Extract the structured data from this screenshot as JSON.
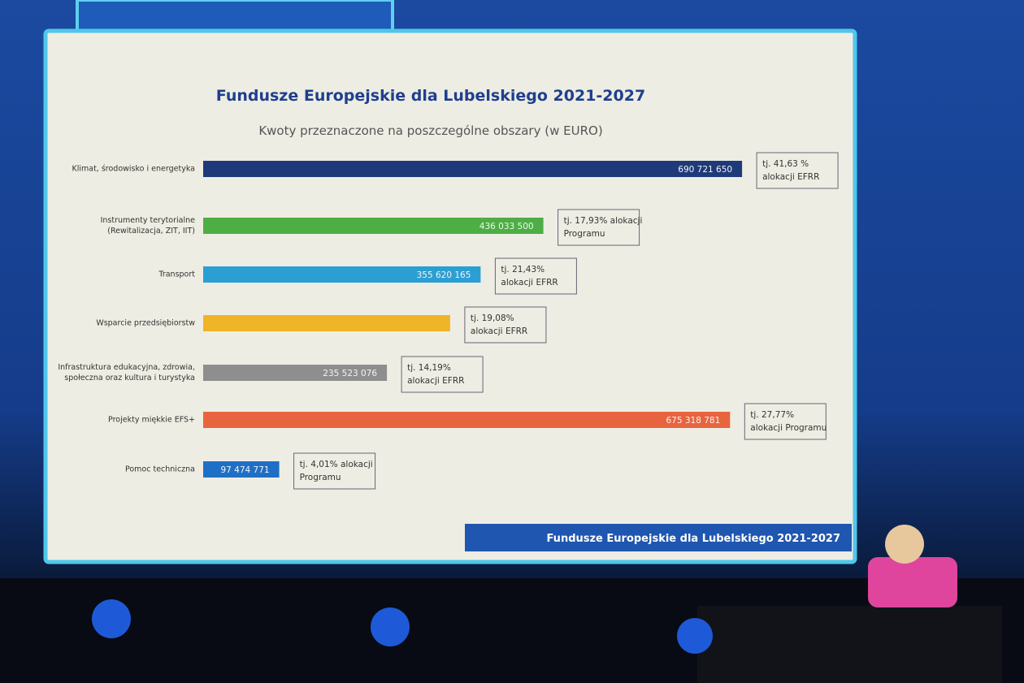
{
  "chart_data": {
    "type": "bar",
    "orientation": "horizontal",
    "title": "Fundusze Europejskie dla Lubelskiego 2021-2027",
    "subtitle": "Kwoty przeznaczone na poszczególne obszary (w EURO)",
    "categories": [
      "Klimat, środowisko i energetyka",
      "Instrumenty terytorialne (Rewitalizacja, ZIT, IIT)",
      "Transport",
      "Wsparcie przedsiębiorstw",
      "Infrastruktura edukacyjna, zdrowia, społeczna oraz kultura i turystyka",
      "Projekty miękkie EFS+",
      "Pomoc techniczna"
    ],
    "values": [
      690721650,
      436033500,
      355620165,
      316565000,
      235523076,
      675318781,
      97474771
    ],
    "value_labels": [
      "690 721 650",
      "436 033 500",
      "355 620 165",
      null,
      "235 523 076",
      "675 318 781",
      "97 474 771"
    ],
    "colors": [
      "#1f3a7a",
      "#4cae44",
      "#2b9fd3",
      "#f0b428",
      "#8e8e8e",
      "#e8643e",
      "#1f6fc6"
    ],
    "annotations": [
      [
        "tj. 41,63 %",
        "alokacji EFRR"
      ],
      [
        "tj. 17,93% alokacji",
        "Programu"
      ],
      [
        "tj. 21,43%",
        "alokacji EFRR"
      ],
      [
        "tj. 19,08%",
        "alokacji EFRR"
      ],
      [
        "tj. 14,19%",
        "alokacji EFRR"
      ],
      [
        "tj. 27,77%",
        "alokacji Programu"
      ],
      [
        "tj. 4,01% alokacji",
        "Programu"
      ]
    ],
    "xlim": [
      0,
      800000000
    ]
  },
  "footer": "Fundusze Europejskie dla Lubelskiego 2021-2027"
}
